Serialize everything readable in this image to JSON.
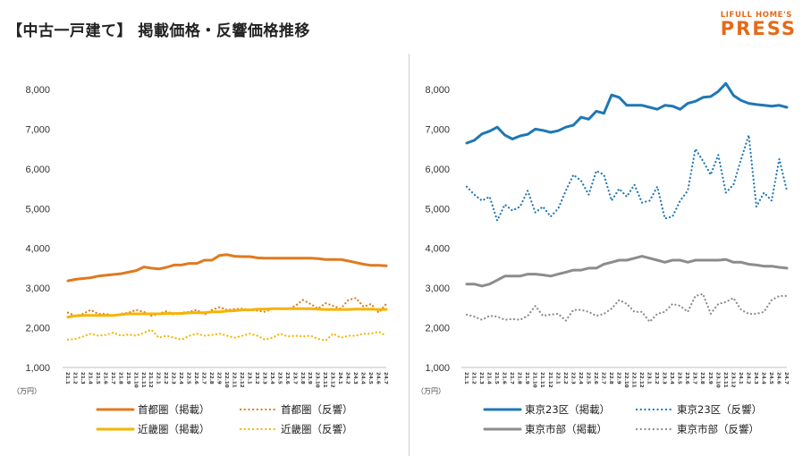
{
  "header": {
    "title": "【中古一戸建て】 掲載価格・反響価格推移",
    "logo_small": "LIFULL HOME'S",
    "logo_big": "PRESS"
  },
  "colors": {
    "orange_dark": "#e07a1f",
    "orange_light": "#f5b400",
    "blue": "#1f77b4",
    "gray": "#8c8c8c",
    "brand": "#e56a1a"
  },
  "chart_data": [
    {
      "type": "line",
      "panel": "left",
      "unit_label": "（万円）",
      "ylim": [
        1000,
        8000
      ],
      "yticks": [
        "1,000",
        "2,000",
        "3,000",
        "4,000",
        "5,000",
        "6,000",
        "7,000",
        "8,000"
      ],
      "categories": [
        "21.1",
        "21.2",
        "21.3",
        "21.4",
        "21.5",
        "21.6",
        "21.7",
        "21.8",
        "21.9",
        "21.10",
        "21.11",
        "21.12",
        "22.1",
        "22.2",
        "22.3",
        "22.4",
        "22.5",
        "22.6",
        "22.7",
        "22.8",
        "22.9",
        "22.10",
        "22.11",
        "22.12",
        "23.1",
        "23.2",
        "23.3",
        "23.4",
        "23.5",
        "23.6",
        "23.7",
        "23.8",
        "23.9",
        "23.10",
        "23.11",
        "23.12",
        "24.1",
        "24.2",
        "24.3",
        "24.4",
        "24.5",
        "24.6",
        "24.7"
      ],
      "series": [
        {
          "name": "首都圏（掲載）",
          "style": "solid",
          "color": "#e07a1f",
          "values": [
            3180,
            3220,
            3240,
            3260,
            3300,
            3320,
            3340,
            3360,
            3400,
            3440,
            3530,
            3500,
            3480,
            3520,
            3580,
            3580,
            3620,
            3620,
            3700,
            3700,
            3820,
            3840,
            3800,
            3790,
            3790,
            3760,
            3750,
            3750,
            3750,
            3750,
            3750,
            3750,
            3750,
            3740,
            3720,
            3720,
            3720,
            3680,
            3640,
            3600,
            3570,
            3570,
            3560
          ]
        },
        {
          "name": "首都圏（反響）",
          "style": "dotted",
          "color": "#e07a1f",
          "values": [
            2380,
            2300,
            2350,
            2450,
            2350,
            2350,
            2300,
            2350,
            2380,
            2450,
            2400,
            2300,
            2350,
            2420,
            2330,
            2380,
            2400,
            2450,
            2330,
            2450,
            2520,
            2450,
            2470,
            2480,
            2450,
            2430,
            2400,
            2500,
            2470,
            2470,
            2550,
            2700,
            2600,
            2480,
            2620,
            2550,
            2480,
            2700,
            2750,
            2530,
            2600,
            2380,
            2600
          ]
        },
        {
          "name": "近畿圏（掲載）",
          "style": "solid",
          "color": "#f5b400",
          "values": [
            2270,
            2300,
            2310,
            2310,
            2310,
            2310,
            2310,
            2330,
            2350,
            2350,
            2350,
            2350,
            2350,
            2360,
            2360,
            2360,
            2380,
            2380,
            2380,
            2400,
            2400,
            2420,
            2430,
            2450,
            2450,
            2470,
            2470,
            2480,
            2480,
            2480,
            2480,
            2480,
            2480,
            2470,
            2460,
            2460,
            2460,
            2460,
            2470,
            2470,
            2470,
            2460,
            2460
          ]
        },
        {
          "name": "近畿圏（反響）",
          "style": "dotted",
          "color": "#f5b400",
          "values": [
            1700,
            1720,
            1780,
            1850,
            1800,
            1820,
            1880,
            1800,
            1830,
            1800,
            1870,
            1950,
            1750,
            1800,
            1750,
            1700,
            1800,
            1850,
            1800,
            1820,
            1850,
            1800,
            1750,
            1800,
            1850,
            1800,
            1700,
            1750,
            1850,
            1780,
            1800,
            1780,
            1800,
            1720,
            1680,
            1850,
            1750,
            1800,
            1800,
            1850,
            1850,
            1900,
            1800
          ]
        }
      ]
    },
    {
      "type": "line",
      "panel": "right",
      "unit_label": "（万円）",
      "ylim": [
        1000,
        8000
      ],
      "yticks": [
        "1,000",
        "2,000",
        "3,000",
        "4,000",
        "5,000",
        "6,000",
        "7,000",
        "8,000"
      ],
      "categories": [
        "21.1",
        "21.2",
        "21.3",
        "21.4",
        "21.5",
        "21.6",
        "21.7",
        "21.8",
        "21.9",
        "21.10",
        "21.11",
        "21.12",
        "22.1",
        "22.2",
        "22.3",
        "22.4",
        "22.5",
        "22.6",
        "22.7",
        "22.8",
        "22.9",
        "22.10",
        "22.11",
        "22.12",
        "23.1",
        "23.2",
        "23.3",
        "23.4",
        "23.5",
        "23.6",
        "23.7",
        "23.8",
        "23.9",
        "23.10",
        "23.11",
        "23.12",
        "24.1",
        "24.2",
        "24.3",
        "24.4",
        "24.5",
        "24.6",
        "24.7"
      ],
      "series": [
        {
          "name": "東京23区（掲載）",
          "style": "solid",
          "color": "#1f77b4",
          "values": [
            6650,
            6720,
            6880,
            6950,
            7050,
            6850,
            6750,
            6830,
            6870,
            7000,
            6970,
            6920,
            6960,
            7050,
            7100,
            7300,
            7250,
            7450,
            7400,
            7860,
            7800,
            7600,
            7600,
            7600,
            7550,
            7500,
            7600,
            7580,
            7500,
            7650,
            7700,
            7800,
            7820,
            7950,
            8150,
            7850,
            7720,
            7650,
            7620,
            7600,
            7580,
            7600,
            7550
          ]
        },
        {
          "name": "東京23区（反響）",
          "style": "dotted",
          "color": "#1f77b4",
          "values": [
            5550,
            5350,
            5200,
            5300,
            4700,
            5100,
            4950,
            5050,
            5450,
            4900,
            5050,
            4800,
            5000,
            5450,
            5850,
            5700,
            5350,
            5950,
            5850,
            5200,
            5500,
            5300,
            5600,
            5150,
            5200,
            5550,
            4750,
            4800,
            5200,
            5450,
            6500,
            6200,
            5850,
            6350,
            5400,
            5600,
            6250,
            6850,
            5050,
            5400,
            5200,
            6250,
            5450
          ]
        },
        {
          "name": "東京市部（掲載）",
          "style": "solid",
          "color": "#8c8c8c",
          "values": [
            3100,
            3100,
            3050,
            3100,
            3200,
            3300,
            3300,
            3300,
            3350,
            3350,
            3330,
            3300,
            3350,
            3400,
            3450,
            3450,
            3500,
            3500,
            3600,
            3650,
            3700,
            3700,
            3750,
            3800,
            3750,
            3700,
            3650,
            3700,
            3700,
            3650,
            3700,
            3700,
            3700,
            3700,
            3720,
            3650,
            3650,
            3600,
            3580,
            3550,
            3550,
            3520,
            3500
          ]
        },
        {
          "name": "東京市部（反響）",
          "style": "dotted",
          "color": "#8c8c8c",
          "values": [
            2330,
            2280,
            2200,
            2300,
            2280,
            2200,
            2220,
            2200,
            2300,
            2550,
            2300,
            2330,
            2350,
            2180,
            2450,
            2450,
            2400,
            2300,
            2350,
            2480,
            2700,
            2600,
            2400,
            2400,
            2150,
            2350,
            2400,
            2600,
            2550,
            2400,
            2800,
            2850,
            2350,
            2600,
            2650,
            2750,
            2450,
            2350,
            2350,
            2400,
            2700,
            2800,
            2800
          ]
        }
      ]
    }
  ]
}
